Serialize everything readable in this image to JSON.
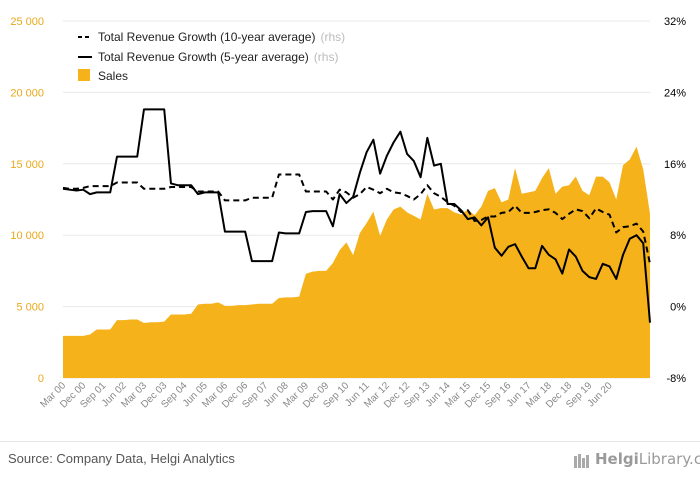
{
  "chart_data": {
    "type": "area",
    "title": "",
    "xlabel": "",
    "ylabel": "",
    "ylim_left": [
      0,
      25000
    ],
    "ylim_right": [
      -0.08,
      0.32
    ],
    "yticks_left": [
      "0",
      "5 000",
      "10 000",
      "15 000",
      "20 000",
      "25 000"
    ],
    "yticks_right": [
      "-8%",
      "0%",
      "8%",
      "16%",
      "24%",
      "32%"
    ],
    "grid": "horizontal",
    "legend_position": "top-left",
    "x_labels": [
      "Mar 00",
      "Dec 00",
      "Sep 01",
      "Jun 02",
      "Mar 03",
      "Dec 03",
      "Sep 04",
      "Jun 05",
      "Mar 06",
      "Dec 06",
      "Sep 07",
      "Jun 08",
      "Mar 09",
      "Dec 09",
      "Sep 10",
      "Jun 11",
      "Mar 12",
      "Dec 12",
      "Sep 13",
      "Jun 14",
      "Mar 15",
      "Dec 15",
      "Sep 16",
      "Jun 17",
      "Mar 18",
      "Dec 18",
      "Sep 19",
      "Jun 20"
    ],
    "series": [
      {
        "name": "Sales",
        "axis": "left",
        "style": "area",
        "color": "#f5b21b",
        "values": [
          2950,
          2950,
          2950,
          2950,
          3050,
          3400,
          3400,
          3400,
          4050,
          4050,
          4100,
          4100,
          3850,
          3900,
          3900,
          3950,
          4450,
          4450,
          4450,
          4500,
          5150,
          5200,
          5200,
          5300,
          5050,
          5050,
          5100,
          5100,
          5150,
          5200,
          5200,
          5200,
          5600,
          5650,
          5650,
          5700,
          7300,
          7450,
          7500,
          7500,
          8050,
          8950,
          9500,
          8600,
          10150,
          10850,
          11650,
          9950,
          11100,
          11800,
          12000,
          11600,
          11350,
          11100,
          12900,
          11800,
          11900,
          11900,
          11600,
          11450,
          11800,
          11400,
          12000,
          13100,
          13300,
          12300,
          12500,
          14700,
          12900,
          13000,
          13100,
          14000,
          14700,
          12900,
          13400,
          13500,
          14100,
          13100,
          12800,
          14100,
          14100,
          13700,
          12500,
          14900,
          15300,
          16200,
          14600,
          11500
        ]
      },
      {
        "name": "Total Revenue Growth (10-year average)",
        "axis": "right",
        "style": "dashed",
        "color": "#000000",
        "values": [
          0.133,
          0.132,
          0.132,
          0.133,
          0.135,
          0.135,
          0.135,
          0.135,
          0.139,
          0.139,
          0.139,
          0.139,
          0.132,
          0.132,
          0.132,
          0.132,
          0.134,
          0.134,
          0.134,
          0.134,
          0.129,
          0.129,
          0.129,
          0.129,
          0.119,
          0.119,
          0.119,
          0.119,
          0.122,
          0.122,
          0.122,
          0.122,
          0.148,
          0.148,
          0.148,
          0.148,
          0.129,
          0.129,
          0.129,
          0.129,
          0.12,
          0.131,
          0.128,
          0.122,
          0.126,
          0.134,
          0.131,
          0.127,
          0.132,
          0.128,
          0.127,
          0.124,
          0.12,
          0.126,
          0.136,
          0.127,
          0.123,
          0.117,
          0.113,
          0.106,
          0.108,
          0.096,
          0.097,
          0.101,
          0.101,
          0.105,
          0.106,
          0.113,
          0.105,
          0.105,
          0.106,
          0.108,
          0.109,
          0.105,
          0.098,
          0.104,
          0.109,
          0.107,
          0.099,
          0.11,
          0.106,
          0.103,
          0.083,
          0.089,
          0.09,
          0.093,
          0.084,
          0.048
        ]
      },
      {
        "name": "Total Revenue Growth (5-year average)",
        "axis": "right",
        "style": "solid",
        "color": "#000000",
        "values": [
          0.132,
          0.131,
          0.13,
          0.131,
          0.126,
          0.128,
          0.128,
          0.128,
          0.168,
          0.168,
          0.168,
          0.168,
          0.221,
          0.221,
          0.221,
          0.221,
          0.138,
          0.136,
          0.136,
          0.136,
          0.126,
          0.128,
          0.128,
          0.128,
          0.084,
          0.084,
          0.084,
          0.084,
          0.051,
          0.051,
          0.051,
          0.051,
          0.083,
          0.082,
          0.082,
          0.082,
          0.106,
          0.107,
          0.107,
          0.107,
          0.09,
          0.126,
          0.116,
          0.123,
          0.15,
          0.173,
          0.187,
          0.149,
          0.169,
          0.184,
          0.196,
          0.171,
          0.163,
          0.145,
          0.189,
          0.158,
          0.16,
          0.115,
          0.115,
          0.108,
          0.098,
          0.1,
          0.091,
          0.1,
          0.066,
          0.057,
          0.067,
          0.07,
          0.056,
          0.043,
          0.043,
          0.068,
          0.058,
          0.053,
          0.037,
          0.064,
          0.056,
          0.04,
          0.033,
          0.031,
          0.048,
          0.045,
          0.031,
          0.058,
          0.076,
          0.08,
          0.071,
          -0.018
        ]
      }
    ]
  },
  "legend": {
    "items": [
      {
        "label": "Total Revenue Growth (10-year average)",
        "tag": "(rhs)"
      },
      {
        "label": "Total Revenue Growth (5-year average)",
        "tag": "(rhs)"
      },
      {
        "label": "Sales",
        "tag": ""
      }
    ]
  },
  "footer": {
    "source": "Source: Company Data, Helgi Analytics",
    "brand_bold": "Helgi",
    "brand_rest": "Library.com"
  }
}
